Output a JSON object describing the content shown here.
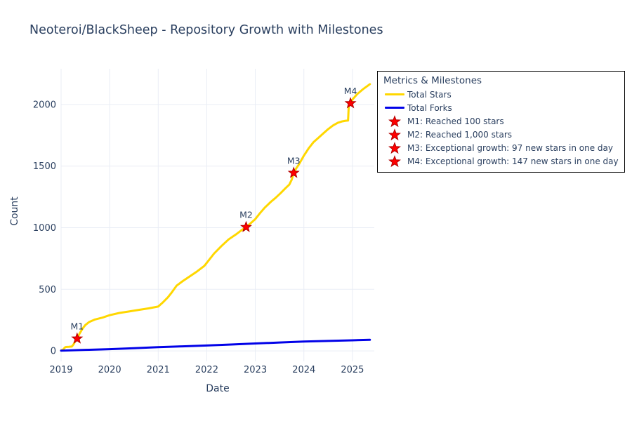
{
  "title": "Neoteroi/BlackSheep - Repository Growth with Milestones",
  "colors": {
    "text": "#2a3f5f",
    "grid": "#e9edf5",
    "background": "#ffffff",
    "stars_line": "#ffd700",
    "forks_line": "#0202e8",
    "milestone_fill": "#ff0000",
    "milestone_stroke": "#b00000",
    "legend_border": "#000000"
  },
  "legend": {
    "title": "Metrics & Milestones",
    "items": [
      {
        "type": "line",
        "color": "#ffd700",
        "label": "Total Stars"
      },
      {
        "type": "line",
        "color": "#0202e8",
        "label": "Total Forks"
      },
      {
        "type": "star",
        "color": "#ff0000",
        "label": "M1: Reached 100 stars"
      },
      {
        "type": "star",
        "color": "#ff0000",
        "label": "M2: Reached 1,000 stars"
      },
      {
        "type": "star",
        "color": "#ff0000",
        "label": "M3: Exceptional growth: 97 new stars in one day"
      },
      {
        "type": "star",
        "color": "#ff0000",
        "label": "M4: Exceptional growth: 147 new stars in one day"
      }
    ]
  },
  "chart_data": {
    "type": "line",
    "title": "Neoteroi/BlackSheep - Repository Growth with Milestones",
    "xlabel": "Date",
    "ylabel": "Count",
    "grid": true,
    "legend_position": "outside-top-right",
    "x_ticks": [
      2019,
      2020,
      2021,
      2022,
      2023,
      2024,
      2025
    ],
    "y_ticks": [
      0,
      500,
      1000,
      1500,
      2000
    ],
    "x_range": [
      2019.0,
      2025.45
    ],
    "y_range": [
      -85,
      2290
    ],
    "series": [
      {
        "name": "Total Stars",
        "color": "#ffd700",
        "width": 3,
        "x": [
          2019.0,
          2019.04,
          2019.08,
          2019.1,
          2019.16,
          2019.22,
          2019.26,
          2019.3,
          2019.33,
          2019.38,
          2019.44,
          2019.5,
          2019.58,
          2019.7,
          2019.85,
          2020.0,
          2020.2,
          2020.4,
          2020.6,
          2020.8,
          2021.0,
          2021.1,
          2021.2,
          2021.28,
          2021.38,
          2021.5,
          2021.65,
          2021.8,
          2021.95,
          2022.05,
          2022.15,
          2022.3,
          2022.45,
          2022.6,
          2022.7,
          2022.81,
          2022.9,
          2023.0,
          2023.1,
          2023.2,
          2023.32,
          2023.42,
          2023.52,
          2023.62,
          2023.7,
          2023.75,
          2023.79,
          2023.84,
          2023.9,
          2024.0,
          2024.1,
          2024.2,
          2024.3,
          2024.4,
          2024.5,
          2024.6,
          2024.7,
          2024.78,
          2024.86,
          2024.91,
          2024.925,
          2024.96,
          2025.0,
          2025.1,
          2025.22,
          2025.36
        ],
        "y": [
          3,
          10,
          28,
          32,
          33,
          35,
          55,
          85,
          100,
          140,
          180,
          210,
          235,
          255,
          270,
          290,
          308,
          320,
          333,
          345,
          360,
          395,
          435,
          475,
          530,
          565,
          605,
          645,
          690,
          740,
          790,
          850,
          905,
          945,
          975,
          1005,
          1035,
          1070,
          1120,
          1165,
          1210,
          1243,
          1280,
          1320,
          1350,
          1390,
          1445,
          1480,
          1515,
          1585,
          1645,
          1695,
          1730,
          1765,
          1800,
          1830,
          1852,
          1862,
          1868,
          1870,
          1995,
          2010,
          2040,
          2085,
          2125,
          2165
        ]
      },
      {
        "name": "Total Forks",
        "color": "#0202e8",
        "width": 3,
        "x": [
          2019.0,
          2019.5,
          2020.0,
          2020.5,
          2021.0,
          2021.5,
          2022.0,
          2022.5,
          2023.0,
          2023.5,
          2024.0,
          2024.5,
          2025.0,
          2025.36
        ],
        "y": [
          2,
          8,
          14,
          22,
          30,
          37,
          44,
          52,
          60,
          68,
          76,
          81,
          86,
          90
        ]
      }
    ],
    "milestones": [
      {
        "label": "M1",
        "x": 2019.33,
        "y": 100,
        "description": "M1: Reached 100 stars"
      },
      {
        "label": "M2",
        "x": 2022.81,
        "y": 1005,
        "description": "M2: Reached 1,000 stars"
      },
      {
        "label": "M3",
        "x": 2023.79,
        "y": 1445,
        "description": "M3: Exceptional growth: 97 new stars in one day"
      },
      {
        "label": "M4",
        "x": 2024.96,
        "y": 2010,
        "description": "M4: Exceptional growth: 147 new stars in one day"
      }
    ]
  }
}
